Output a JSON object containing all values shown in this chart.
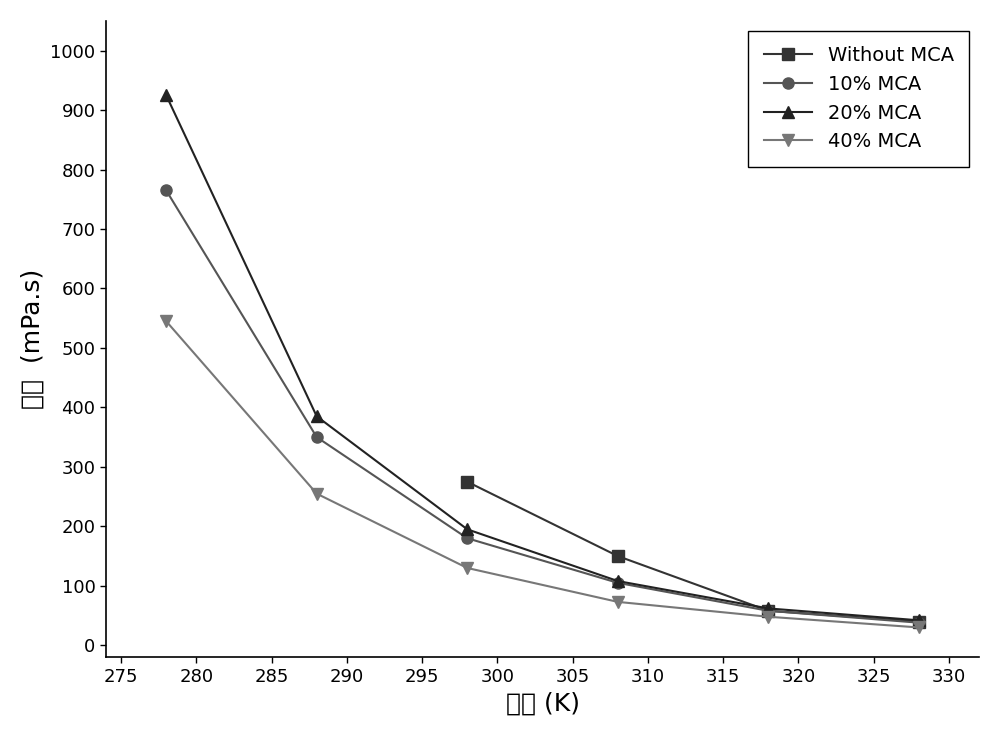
{
  "x_values": [
    278,
    288,
    298,
    308,
    318,
    328
  ],
  "series": [
    {
      "label": "Without MCA",
      "y": [
        null,
        null,
        275,
        150,
        58,
        40
      ],
      "color": "#333333",
      "marker": "s",
      "markersize": 8,
      "linewidth": 1.5
    },
    {
      "label": "10% MCA",
      "y": [
        765,
        350,
        180,
        105,
        58,
        38
      ],
      "color": "#555555",
      "marker": "o",
      "markersize": 8,
      "linewidth": 1.5
    },
    {
      "label": "20% MCA",
      "y": [
        925,
        385,
        195,
        108,
        62,
        42
      ],
      "color": "#222222",
      "marker": "^",
      "markersize": 9,
      "linewidth": 1.5
    },
    {
      "label": "40% MCA",
      "y": [
        545,
        255,
        130,
        73,
        48,
        30
      ],
      "color": "#777777",
      "marker": "v",
      "markersize": 9,
      "linewidth": 1.5
    }
  ],
  "xlabel": "温度 (K)",
  "ylabel": "粘度  (mPa.s)",
  "xlim": [
    274,
    332
  ],
  "ylim": [
    -20,
    1050
  ],
  "xticks": [
    275,
    280,
    285,
    290,
    295,
    300,
    305,
    310,
    315,
    320,
    325,
    330
  ],
  "yticks": [
    0,
    100,
    200,
    300,
    400,
    500,
    600,
    700,
    800,
    900,
    1000
  ],
  "legend_loc": "upper right",
  "background_color": "#ffffff",
  "axis_fontsize": 18,
  "tick_fontsize": 13,
  "legend_fontsize": 14
}
